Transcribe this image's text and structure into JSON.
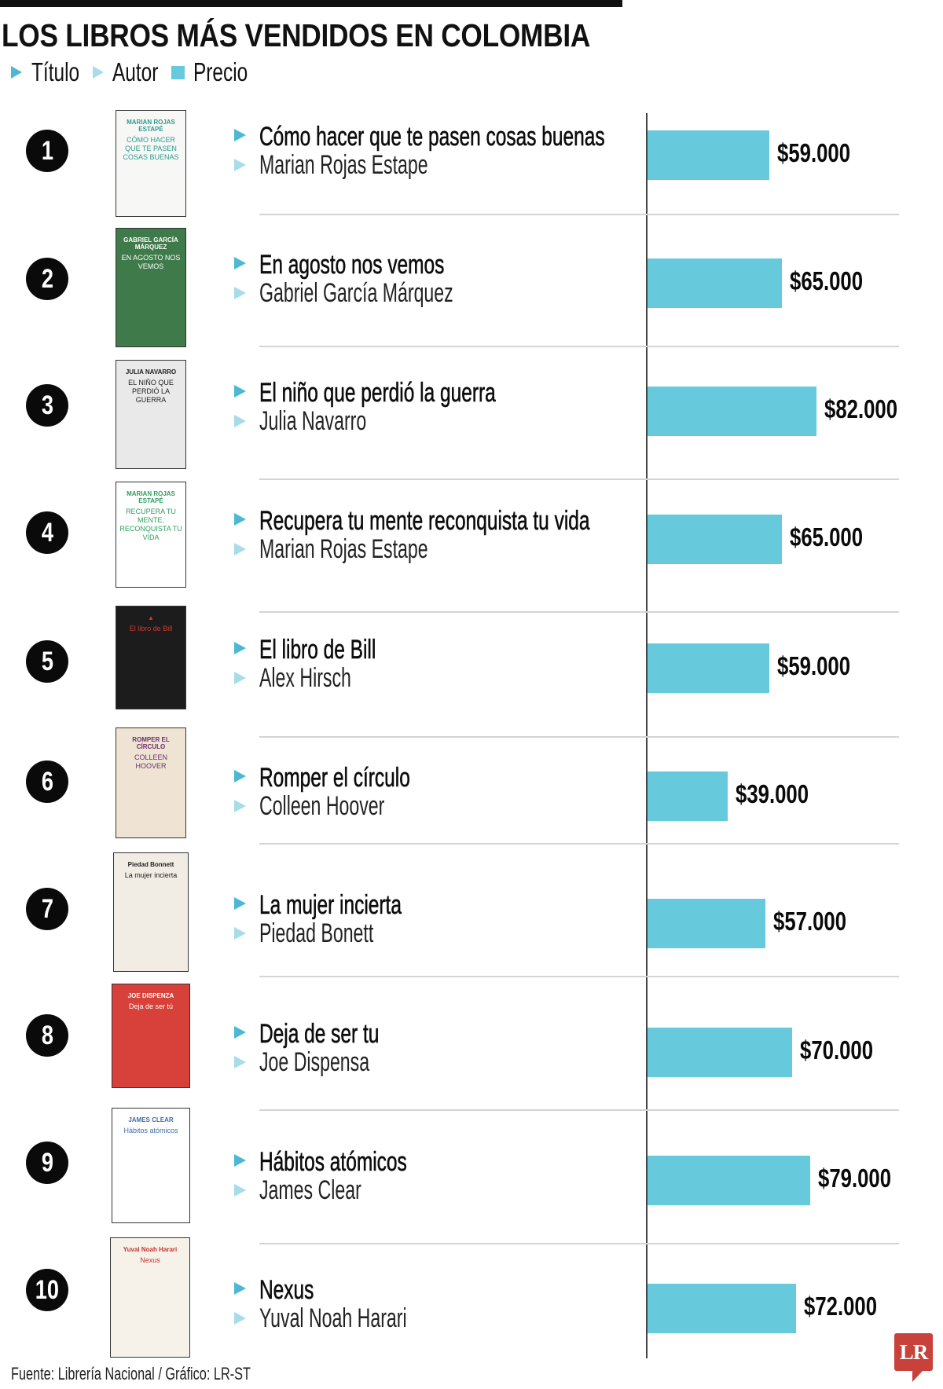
{
  "header": {
    "title": "LOS LIBROS MÁS VENDIDOS EN COLOMBIA",
    "legend": [
      {
        "icon": "triangle-dark-blue",
        "label": "Título"
      },
      {
        "icon": "triangle-light-blue",
        "label": "Autor"
      },
      {
        "icon": "square-blue",
        "label": "Precio"
      }
    ]
  },
  "colors": {
    "bar": "#67C9DC",
    "title_arrow": "#4DB8D4",
    "author_arrow": "#A8DCEA",
    "rank_circle": "#0A0A0A",
    "logo": "#C8413B"
  },
  "books": [
    {
      "rank": "1",
      "title": "Cómo hacer que te pasen cosas buenas",
      "author": "Marian Rojas Estape",
      "price_label": "$59.000",
      "price": 59000,
      "cover": {
        "bg": "#f7f7f5",
        "fg": "#2a9d8f",
        "line1": "MARIAN ROJAS ESTAPÉ",
        "line2": "CÓMO HACER QUE TE PASEN COSAS BUENAS"
      }
    },
    {
      "rank": "2",
      "title": "En agosto nos vemos",
      "author": "Gabriel García Márquez",
      "price_label": "$65.000",
      "price": 65000,
      "cover": {
        "bg": "#3f7a4a",
        "fg": "#ffffff",
        "line1": "GABRIEL GARCÍA MÁRQUEZ",
        "line2": "EN AGOSTO NOS VEMOS"
      }
    },
    {
      "rank": "3",
      "title": "El niño que perdió la guerra",
      "author": "Julia Navarro",
      "price_label": "$82.000",
      "price": 82000,
      "cover": {
        "bg": "#e9e9e9",
        "fg": "#222222",
        "line1": "JULIA NAVARRO",
        "line2": "EL NIÑO QUE PERDIÓ LA GUERRA"
      }
    },
    {
      "rank": "4",
      "title": "Recupera tu mente reconquista tu vida",
      "author": "Marian Rojas Estape",
      "price_label": "$65.000",
      "price": 65000,
      "cover": {
        "bg": "#ffffff",
        "fg": "#2e9e5e",
        "line1": "MARIAN ROJAS ESTAPÉ",
        "line2": "RECUPERA TU MENTE, RECONQUISTA TU VIDA"
      }
    },
    {
      "rank": "5",
      "title": "El libro de Bill",
      "author": "Alex Hirsch",
      "price_label": "$59.000",
      "price": 59000,
      "cover": {
        "bg": "#1c1c1c",
        "fg": "#d23a2e",
        "line1": "▲",
        "line2": "El libro de Bill"
      }
    },
    {
      "rank": "6",
      "title": "Romper el círculo",
      "author": "Colleen Hoover",
      "price_label": "$39.000",
      "price": 39000,
      "cover": {
        "bg": "#efe4d3",
        "fg": "#6b2d6b",
        "line1": "ROMPER EL CÍRCULO",
        "line2": "COLLEEN HOOVER"
      }
    },
    {
      "rank": "7",
      "title": "La mujer incierta",
      "author": "Piedad Bonett",
      "price_label": "$57.000",
      "price": 57000,
      "cover": {
        "bg": "#f1ede4",
        "fg": "#222222",
        "line1": "Piedad Bonnett",
        "line2": "La mujer incierta"
      }
    },
    {
      "rank": "8",
      "title": "Deja de ser tu",
      "author": "Joe Dispensa",
      "price_label": "$70.000",
      "price": 70000,
      "cover": {
        "bg": "#d8403a",
        "fg": "#ffffff",
        "line1": "JOE DISPENZA",
        "line2": "Deja de ser tú"
      }
    },
    {
      "rank": "9",
      "title": "Hábitos atómicos",
      "author": "James Clear",
      "price_label": "$79.000",
      "price": 79000,
      "cover": {
        "bg": "#ffffff",
        "fg": "#3f6ea8",
        "line1": "JAMES CLEAR",
        "line2": "Hábitos atómicos"
      }
    },
    {
      "rank": "10",
      "title": "Nexus",
      "author": "Yuval Noah Harari",
      "price_label": "$72.000",
      "price": 72000,
      "cover": {
        "bg": "#f6f2ea",
        "fg": "#c8322c",
        "line1": "Yuval Noah Harari",
        "line2": "Nexus"
      }
    }
  ],
  "footer": {
    "source": "Fuente: Librería Nacional / Gráfico: LR-ST"
  },
  "logo": {
    "text": "LR"
  },
  "chart_data": {
    "type": "bar",
    "orientation": "horizontal",
    "title": "LOS LIBROS MÁS VENDIDOS EN COLOMBIA",
    "categories": [
      "Cómo hacer que te pasen cosas buenas",
      "En agosto nos vemos",
      "El niño que perdió la guerra",
      "Recupera tu mente reconquista tu vida",
      "El libro de Bill",
      "Romper el círculo",
      "La mujer incierta",
      "Deja de ser tu",
      "Hábitos atómicos",
      "Nexus"
    ],
    "authors": [
      "Marian Rojas Estape",
      "Gabriel García Márquez",
      "Julia Navarro",
      "Marian Rojas Estape",
      "Alex Hirsch",
      "Colleen Hoover",
      "Piedad Bonett",
      "Joe Dispensa",
      "James Clear",
      "Yuval Noah Harari"
    ],
    "values": [
      59000,
      65000,
      82000,
      65000,
      59000,
      39000,
      57000,
      70000,
      79000,
      72000
    ],
    "value_labels": [
      "$59.000",
      "$65.000",
      "$82.000",
      "$65.000",
      "$59.000",
      "$39.000",
      "$57.000",
      "$70.000",
      "$79.000",
      "$72.000"
    ],
    "legend": [
      "Título",
      "Autor",
      "Precio"
    ],
    "xlabel": "",
    "ylabel": "",
    "grid": false,
    "source": "Fuente: Librería Nacional / Gráfico: LR-ST"
  }
}
